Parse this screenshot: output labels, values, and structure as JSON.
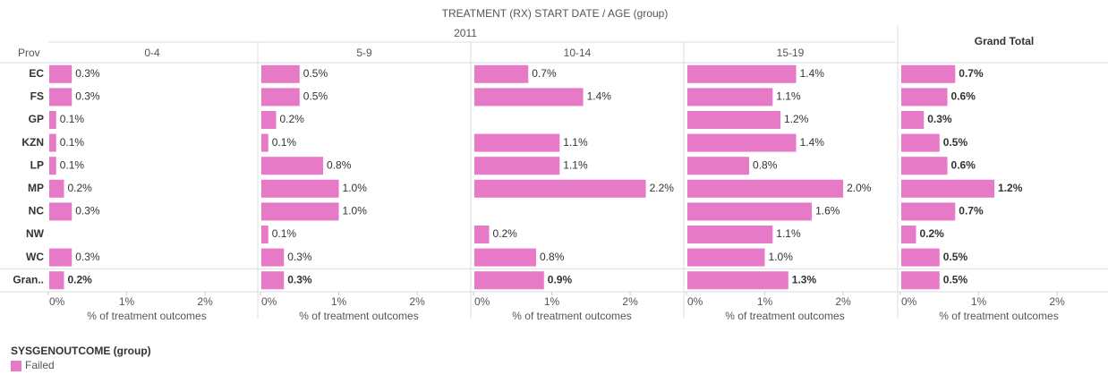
{
  "chart_data": {
    "type": "bar",
    "orientation": "horizontal",
    "title": "TREATMENT (RX) START DATE  /  AGE (group)",
    "subtitle": "2011",
    "row_header": "Prov",
    "categories": [
      "EC",
      "FS",
      "GP",
      "KZN",
      "LP",
      "MP",
      "NC",
      "NW",
      "WC",
      "Gran.."
    ],
    "color": "#e67ac7",
    "xlim": [
      0,
      2.65
    ],
    "xticks": [
      {
        "value": 0,
        "label": "0%"
      },
      {
        "value": 1,
        "label": "1%"
      },
      {
        "value": 2,
        "label": "2%"
      }
    ],
    "xlabel": "% of treatment outcomes",
    "panels": [
      {
        "name": "0-4",
        "values": [
          0.3,
          0.3,
          0.1,
          0.1,
          0.1,
          0.2,
          0.3,
          null,
          0.3,
          0.2
        ],
        "value_labels": [
          "0.3%",
          "0.3%",
          "0.1%",
          "0.1%",
          "0.1%",
          "0.2%",
          "0.3%",
          null,
          "0.3%",
          "0.2%"
        ]
      },
      {
        "name": "5-9",
        "values": [
          0.5,
          0.5,
          0.2,
          0.1,
          0.8,
          1.0,
          1.0,
          0.1,
          0.3,
          0.3
        ],
        "value_labels": [
          "0.5%",
          "0.5%",
          "0.2%",
          "0.1%",
          "0.8%",
          "1.0%",
          "1.0%",
          "0.1%",
          "0.3%",
          "0.3%"
        ]
      },
      {
        "name": "10-14",
        "values": [
          0.7,
          1.4,
          null,
          1.1,
          1.1,
          2.2,
          null,
          0.2,
          0.8,
          0.9
        ],
        "value_labels": [
          "0.7%",
          "1.4%",
          null,
          "1.1%",
          "1.1%",
          "2.2%",
          null,
          "0.2%",
          "0.8%",
          "0.9%"
        ]
      },
      {
        "name": "15-19",
        "values": [
          1.4,
          1.1,
          1.2,
          1.4,
          0.8,
          2.0,
          1.6,
          1.1,
          1.0,
          1.3
        ],
        "value_labels": [
          "1.4%",
          "1.1%",
          "1.2%",
          "1.4%",
          "0.8%",
          "2.0%",
          "1.6%",
          "1.1%",
          "1.0%",
          "1.3%"
        ]
      },
      {
        "name": "Grand Total",
        "values": [
          0.7,
          0.6,
          0.3,
          0.5,
          0.6,
          1.2,
          0.7,
          0.2,
          0.5,
          0.5
        ],
        "value_labels": [
          "0.7%",
          "0.6%",
          "0.3%",
          "0.5%",
          "0.6%",
          "1.2%",
          "0.7%",
          "0.2%",
          "0.5%",
          "0.5%"
        ]
      }
    ],
    "legend": {
      "title": "SYSGENOUTCOME (group)",
      "items": [
        "Failed"
      ]
    }
  }
}
